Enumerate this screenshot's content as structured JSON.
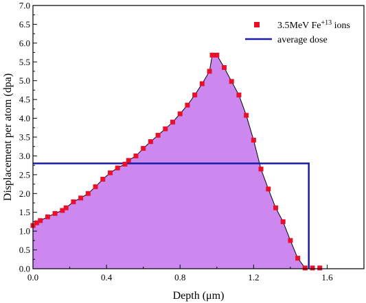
{
  "chart_data": {
    "type": "area",
    "title": "",
    "xlabel": "Depth (μm)",
    "ylabel": "Displacement per atom (dpa)",
    "xlim": [
      0.0,
      1.8
    ],
    "ylim": [
      0.0,
      7.0
    ],
    "xticks": [
      "0.0",
      "0.4",
      "0.8",
      "1.2",
      "1.6"
    ],
    "xtick_values": [
      0.0,
      0.4,
      0.8,
      1.2,
      1.6
    ],
    "yticks": [
      "0.0",
      "0.5",
      "1.0",
      "1.5",
      "2.0",
      "2.5",
      "3.0",
      "3.5",
      "4.0",
      "4.5",
      "5.0",
      "5.5",
      "6.0",
      "6.5",
      "7.0"
    ],
    "ytick_values": [
      0.0,
      0.5,
      1.0,
      1.5,
      2.0,
      2.5,
      3.0,
      3.5,
      4.0,
      4.5,
      5.0,
      5.5,
      6.0,
      6.5,
      7.0
    ],
    "legend_position": "top-right",
    "fill_color": "#cc88ee",
    "series": [
      {
        "name": "3.5MeV Fe+13 ions",
        "name_base": "3.5MeV Fe",
        "name_sup": "+13",
        "name_suffix": " ions",
        "kind": "scatter",
        "color": "#e8102a",
        "x": [
          0.0,
          0.02,
          0.04,
          0.08,
          0.12,
          0.16,
          0.18,
          0.22,
          0.26,
          0.3,
          0.34,
          0.38,
          0.42,
          0.46,
          0.5,
          0.52,
          0.56,
          0.6,
          0.64,
          0.68,
          0.72,
          0.76,
          0.8,
          0.84,
          0.88,
          0.92,
          0.96,
          0.975,
          1.0,
          1.04,
          1.08,
          1.12,
          1.16,
          1.2,
          1.24,
          1.28,
          1.32,
          1.36,
          1.4,
          1.44,
          1.48,
          1.52,
          1.56
        ],
        "y": [
          1.15,
          1.22,
          1.28,
          1.38,
          1.47,
          1.55,
          1.62,
          1.78,
          1.88,
          2.0,
          2.18,
          2.38,
          2.55,
          2.68,
          2.78,
          2.88,
          3.0,
          3.2,
          3.38,
          3.55,
          3.72,
          3.9,
          4.12,
          4.35,
          4.62,
          4.92,
          5.25,
          5.68,
          5.68,
          5.35,
          4.98,
          4.62,
          4.08,
          3.42,
          2.65,
          2.12,
          1.62,
          1.25,
          0.75,
          0.28,
          0.02,
          0.02,
          0.02
        ]
      },
      {
        "name": "average dose",
        "kind": "step-line",
        "color": "#1a1aaa",
        "x": [
          0.0,
          1.5,
          1.5
        ],
        "y": [
          2.8,
          2.8,
          0.0
        ]
      }
    ]
  }
}
